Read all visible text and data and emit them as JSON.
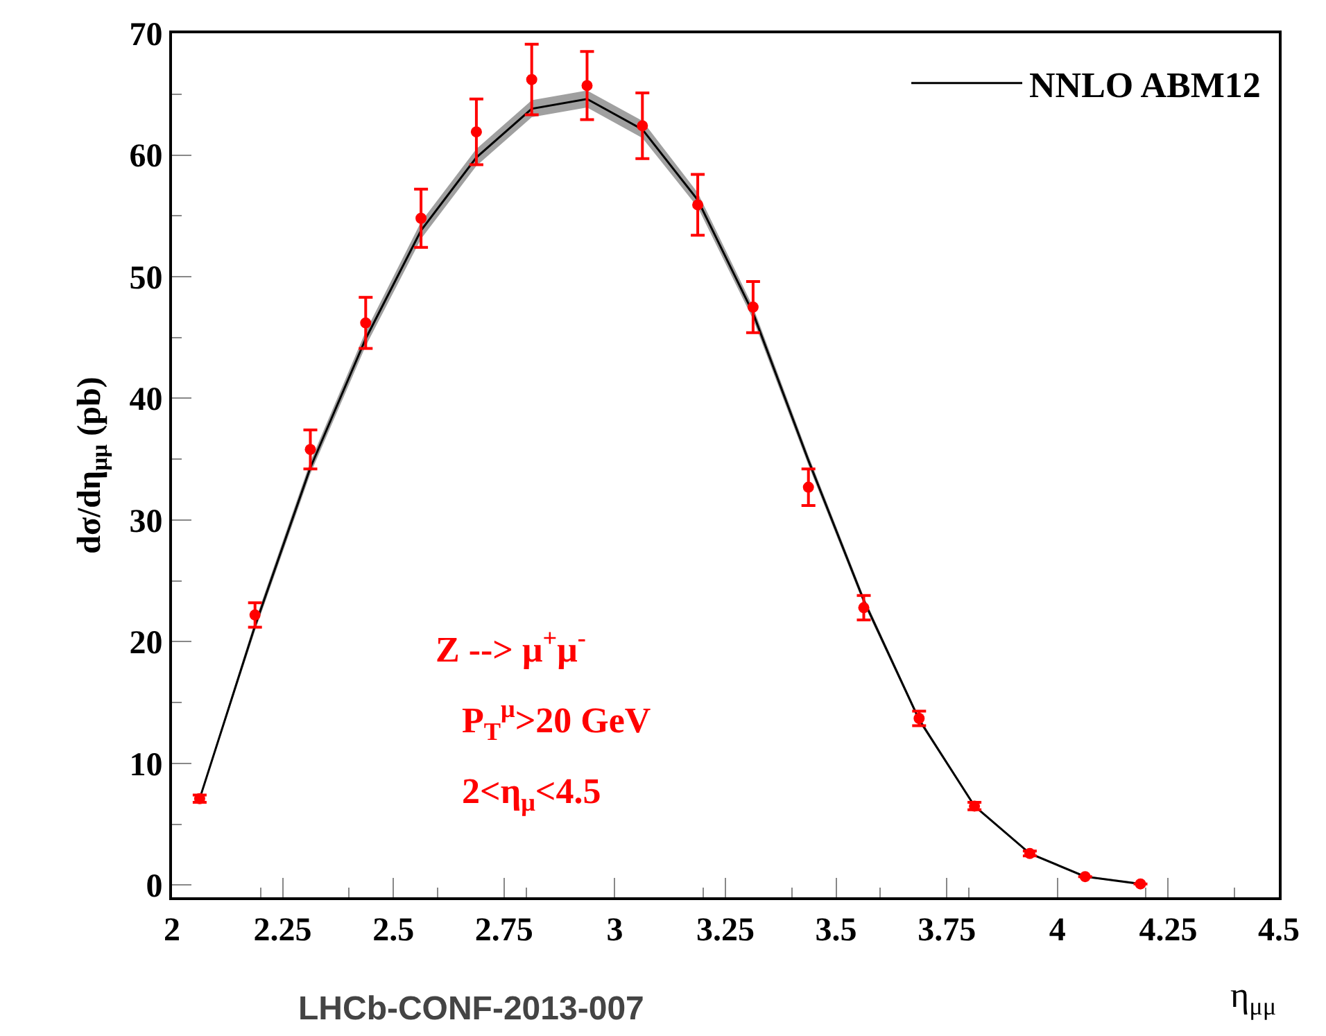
{
  "chart_data": {
    "type": "scatter",
    "xlabel": "η$_{μμ}$",
    "ylabel": "dσ/dη$_{μμ}$ (pb)",
    "x": [
      2.0625,
      2.1875,
      2.3125,
      2.4375,
      2.5625,
      2.6875,
      2.8125,
      2.9375,
      3.0625,
      3.1875,
      3.3125,
      3.4375,
      3.5625,
      3.6875,
      3.8125,
      3.9375,
      4.0625,
      4.1875
    ],
    "series": [
      {
        "type": "line",
        "name": "NNLO ABM12",
        "color": "#000000",
        "marker": "none",
        "line_style": "solid",
        "values": [
          7.1,
          21.3,
          34.3,
          44.9,
          53.8,
          59.8,
          63.8,
          64.6,
          62.1,
          56.3,
          47.0,
          34.9,
          23.4,
          13.6,
          6.5,
          2.6,
          0.7,
          0.1
        ],
        "lower": [
          7.0,
          20.9,
          33.8,
          44.3,
          53.1,
          59.1,
          63.1,
          63.9,
          61.4,
          55.7,
          46.5,
          34.5,
          23.1,
          13.4,
          6.4,
          2.5,
          0.6,
          0.1
        ],
        "upper": [
          7.2,
          21.7,
          34.8,
          45.5,
          54.5,
          60.5,
          64.5,
          65.3,
          62.8,
          56.9,
          47.5,
          35.3,
          23.7,
          13.8,
          6.6,
          2.7,
          0.8,
          0.2
        ]
      },
      {
        "color": "#ff0000",
        "marker": "circle",
        "values": [
          7.1,
          22.2,
          35.8,
          46.2,
          54.8,
          61.9,
          66.2,
          65.7,
          62.4,
          55.9,
          47.5,
          32.7,
          22.8,
          13.7,
          6.5,
          2.6,
          0.7,
          0.1
        ],
        "errors": [
          0.3,
          1.0,
          1.6,
          2.1,
          2.4,
          2.7,
          2.9,
          2.8,
          2.7,
          2.5,
          2.1,
          1.5,
          1.0,
          0.6,
          0.3,
          0.2,
          null,
          null
        ]
      }
    ],
    "xlim": [
      2,
      4.5
    ],
    "xticks": [
      2,
      2.25,
      2.5,
      2.75,
      3,
      3.25,
      3.5,
      3.75,
      4,
      4.25,
      4.5
    ],
    "ylim": [
      -1,
      70
    ],
    "yticks": [
      0,
      10,
      20,
      30,
      40,
      50,
      60,
      70
    ],
    "legend": "top right",
    "annotations": [
      "Z --> μ$^{+}$μ$^{-}$",
      "P$_{T}$$^{μ}$>20 GeV",
      "2<η$_{μ}$<4.5",
      "LHCb-CONF-2013-007"
    ]
  }
}
